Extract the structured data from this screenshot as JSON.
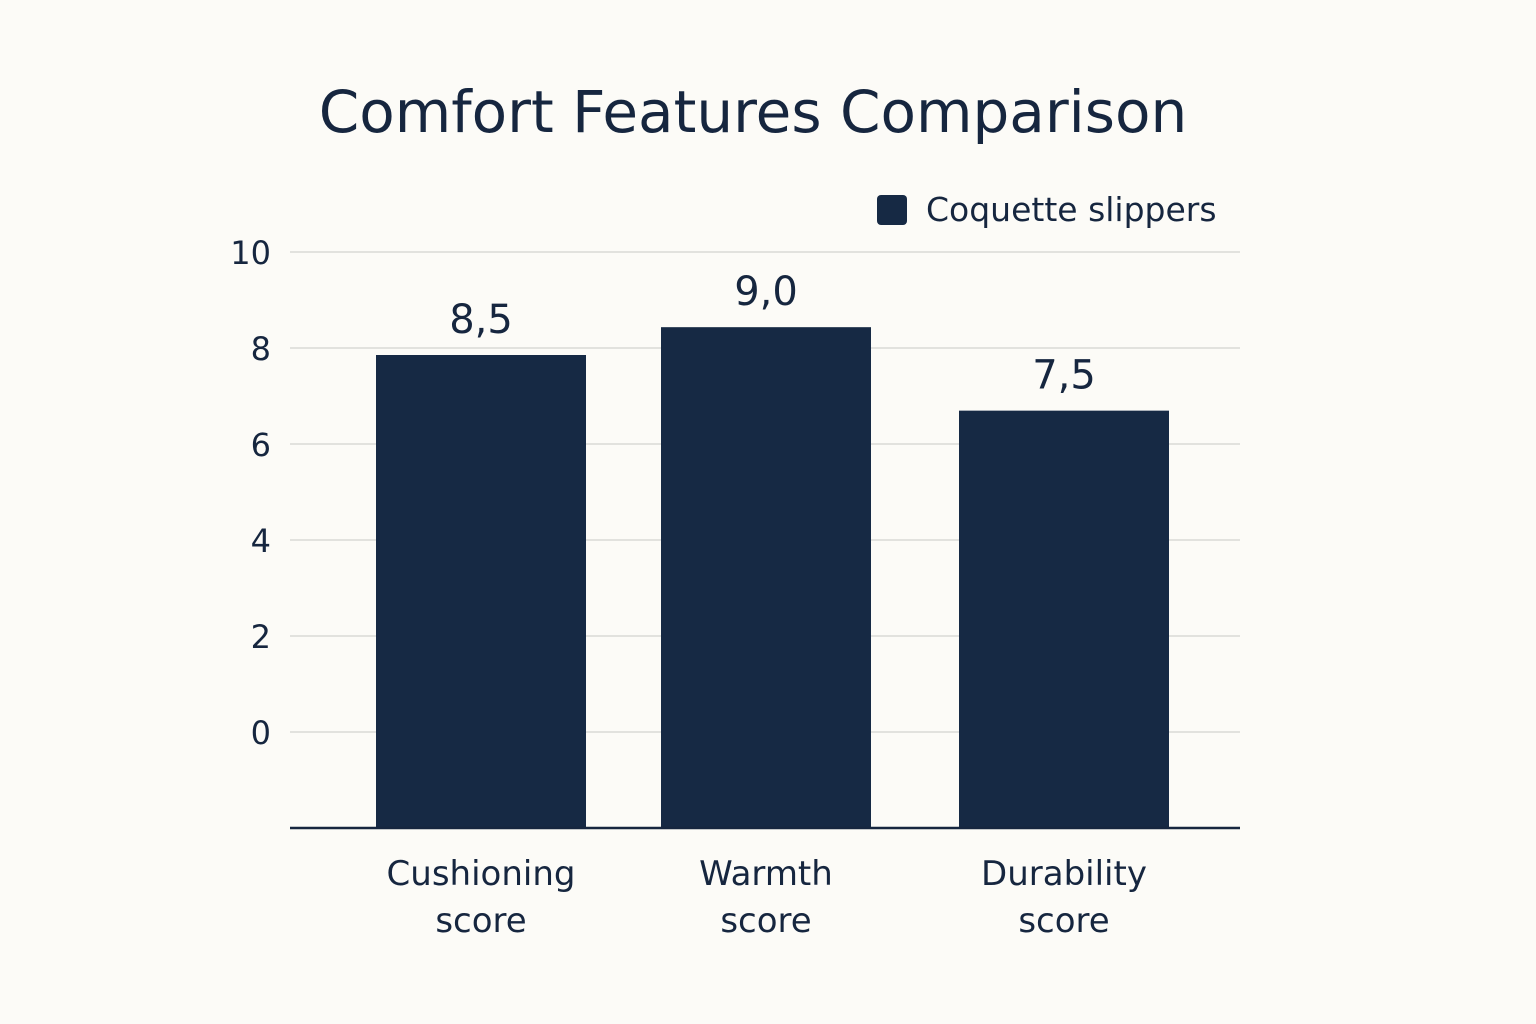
{
  "chart_data": {
    "type": "bar",
    "title": "Comfort Features Comparison",
    "categories": [
      [
        "Cushioning",
        "score"
      ],
      [
        "Warmth",
        "score"
      ],
      [
        "Durability",
        "score"
      ]
    ],
    "series": [
      {
        "name": "Coquette slippers",
        "color": "#162944",
        "values": [
          8.5,
          9.0,
          7.5
        ],
        "value_labels": [
          "8,5",
          "9,0",
          "7,5"
        ]
      }
    ],
    "y_ticks": [
      "10",
      "8",
      "6",
      "4",
      "2",
      "0"
    ],
    "y_tick_values": [
      10,
      8,
      6,
      4,
      2,
      0
    ],
    "xlabel": "",
    "ylabel": "",
    "grid": true,
    "legend_position": "top-right"
  }
}
